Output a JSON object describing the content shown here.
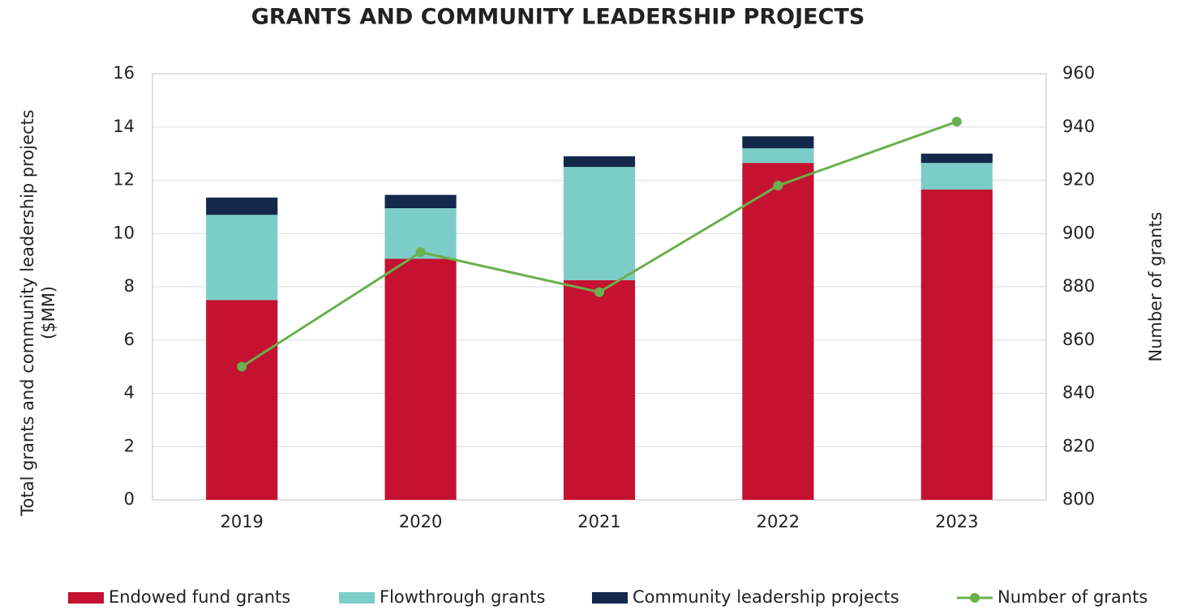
{
  "chart_data": {
    "type": "bar",
    "stacked": true,
    "title": "GRANTS AND COMMUNITY LEADERSHIP PROJECTS",
    "y_label": [
      "Total grants and community leadership projects",
      "($MM)"
    ],
    "y2_label": "Number of grants",
    "categories": [
      "2019",
      "2020",
      "2021",
      "2022",
      "2023"
    ],
    "series": [
      {
        "name": "Endowed fund grants",
        "color": "#c41230",
        "values": [
          7.5,
          9.05,
          8.25,
          12.65,
          11.65
        ]
      },
      {
        "name": "Flowthrough grants",
        "color": "#7ccdc8",
        "values": [
          3.2,
          1.9,
          4.25,
          0.55,
          1.0
        ]
      },
      {
        "name": "Community leadership projects",
        "color": "#14284b",
        "values": [
          0.65,
          0.5,
          0.4,
          0.45,
          0.35
        ]
      },
      {
        "name": "Number of grants",
        "color": "#6ab04c",
        "type": "line",
        "axis": "y2",
        "values": [
          850,
          893,
          878,
          918,
          942
        ]
      }
    ],
    "ylim": [
      0,
      16
    ],
    "yticks": [
      0,
      2,
      4,
      6,
      8,
      10,
      12,
      14,
      16
    ],
    "y2lim": [
      800,
      960
    ],
    "y2ticks": [
      800,
      820,
      840,
      860,
      880,
      900,
      920,
      940,
      960
    ],
    "grid": true,
    "legend": "bottom"
  }
}
